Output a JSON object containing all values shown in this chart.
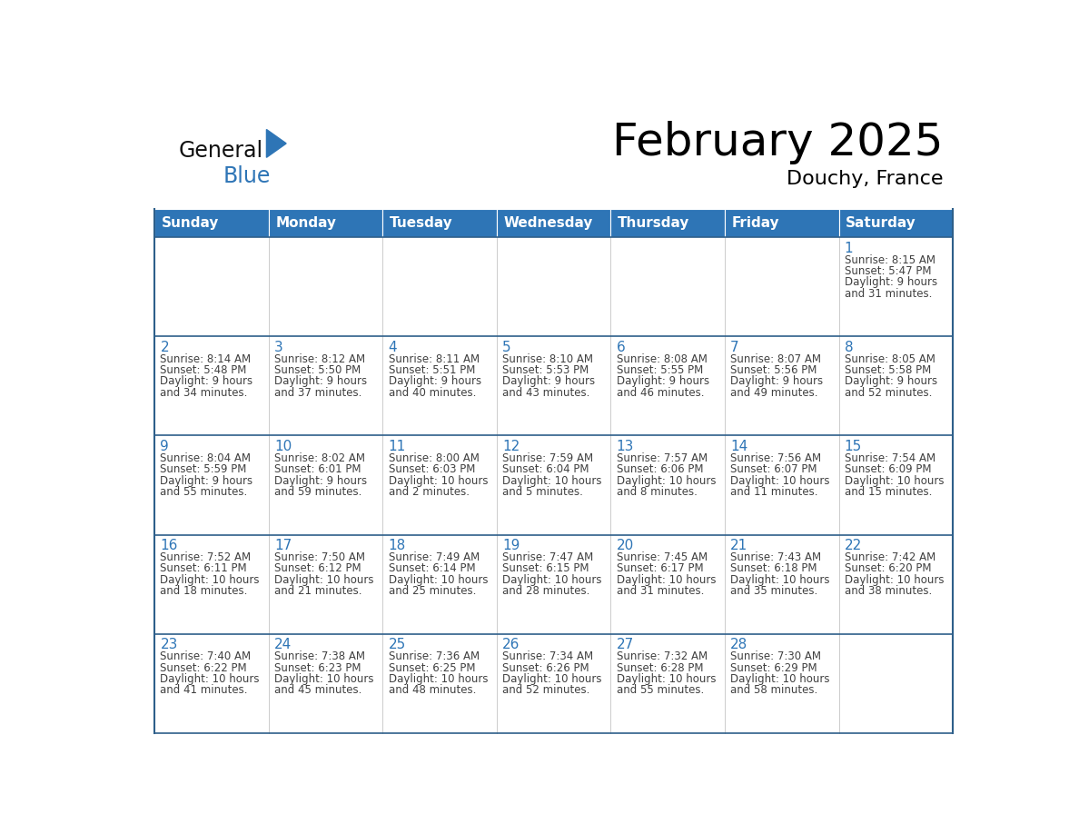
{
  "title": "February 2025",
  "subtitle": "Douchy, France",
  "days_of_week": [
    "Sunday",
    "Monday",
    "Tuesday",
    "Wednesday",
    "Thursday",
    "Friday",
    "Saturday"
  ],
  "header_bg": "#2E75B6",
  "header_text_color": "#FFFFFF",
  "border_color": "#2E5F8A",
  "row_border_color": "#2E5F8A",
  "cell_bg": "#FFFFFF",
  "alt_cell_bg": "#F0F0F0",
  "text_color": "#404040",
  "day_num_color": "#2E75B6",
  "logo_general_color": "#111111",
  "logo_blue_color": "#2E75B6",
  "calendar_data": [
    [
      null,
      null,
      null,
      null,
      null,
      null,
      {
        "day": 1,
        "sunrise": "8:15 AM",
        "sunset": "5:47 PM",
        "daylight": "9 hours and 31 minutes."
      }
    ],
    [
      {
        "day": 2,
        "sunrise": "8:14 AM",
        "sunset": "5:48 PM",
        "daylight": "9 hours and 34 minutes."
      },
      {
        "day": 3,
        "sunrise": "8:12 AM",
        "sunset": "5:50 PM",
        "daylight": "9 hours and 37 minutes."
      },
      {
        "day": 4,
        "sunrise": "8:11 AM",
        "sunset": "5:51 PM",
        "daylight": "9 hours and 40 minutes."
      },
      {
        "day": 5,
        "sunrise": "8:10 AM",
        "sunset": "5:53 PM",
        "daylight": "9 hours and 43 minutes."
      },
      {
        "day": 6,
        "sunrise": "8:08 AM",
        "sunset": "5:55 PM",
        "daylight": "9 hours and 46 minutes."
      },
      {
        "day": 7,
        "sunrise": "8:07 AM",
        "sunset": "5:56 PM",
        "daylight": "9 hours and 49 minutes."
      },
      {
        "day": 8,
        "sunrise": "8:05 AM",
        "sunset": "5:58 PM",
        "daylight": "9 hours and 52 minutes."
      }
    ],
    [
      {
        "day": 9,
        "sunrise": "8:04 AM",
        "sunset": "5:59 PM",
        "daylight": "9 hours and 55 minutes."
      },
      {
        "day": 10,
        "sunrise": "8:02 AM",
        "sunset": "6:01 PM",
        "daylight": "9 hours and 59 minutes."
      },
      {
        "day": 11,
        "sunrise": "8:00 AM",
        "sunset": "6:03 PM",
        "daylight": "10 hours and 2 minutes."
      },
      {
        "day": 12,
        "sunrise": "7:59 AM",
        "sunset": "6:04 PM",
        "daylight": "10 hours and 5 minutes."
      },
      {
        "day": 13,
        "sunrise": "7:57 AM",
        "sunset": "6:06 PM",
        "daylight": "10 hours and 8 minutes."
      },
      {
        "day": 14,
        "sunrise": "7:56 AM",
        "sunset": "6:07 PM",
        "daylight": "10 hours and 11 minutes."
      },
      {
        "day": 15,
        "sunrise": "7:54 AM",
        "sunset": "6:09 PM",
        "daylight": "10 hours and 15 minutes."
      }
    ],
    [
      {
        "day": 16,
        "sunrise": "7:52 AM",
        "sunset": "6:11 PM",
        "daylight": "10 hours and 18 minutes."
      },
      {
        "day": 17,
        "sunrise": "7:50 AM",
        "sunset": "6:12 PM",
        "daylight": "10 hours and 21 minutes."
      },
      {
        "day": 18,
        "sunrise": "7:49 AM",
        "sunset": "6:14 PM",
        "daylight": "10 hours and 25 minutes."
      },
      {
        "day": 19,
        "sunrise": "7:47 AM",
        "sunset": "6:15 PM",
        "daylight": "10 hours and 28 minutes."
      },
      {
        "day": 20,
        "sunrise": "7:45 AM",
        "sunset": "6:17 PM",
        "daylight": "10 hours and 31 minutes."
      },
      {
        "day": 21,
        "sunrise": "7:43 AM",
        "sunset": "6:18 PM",
        "daylight": "10 hours and 35 minutes."
      },
      {
        "day": 22,
        "sunrise": "7:42 AM",
        "sunset": "6:20 PM",
        "daylight": "10 hours and 38 minutes."
      }
    ],
    [
      {
        "day": 23,
        "sunrise": "7:40 AM",
        "sunset": "6:22 PM",
        "daylight": "10 hours and 41 minutes."
      },
      {
        "day": 24,
        "sunrise": "7:38 AM",
        "sunset": "6:23 PM",
        "daylight": "10 hours and 45 minutes."
      },
      {
        "day": 25,
        "sunrise": "7:36 AM",
        "sunset": "6:25 PM",
        "daylight": "10 hours and 48 minutes."
      },
      {
        "day": 26,
        "sunrise": "7:34 AM",
        "sunset": "6:26 PM",
        "daylight": "10 hours and 52 minutes."
      },
      {
        "day": 27,
        "sunrise": "7:32 AM",
        "sunset": "6:28 PM",
        "daylight": "10 hours and 55 minutes."
      },
      {
        "day": 28,
        "sunrise": "7:30 AM",
        "sunset": "6:29 PM",
        "daylight": "10 hours and 58 minutes."
      },
      null
    ]
  ]
}
